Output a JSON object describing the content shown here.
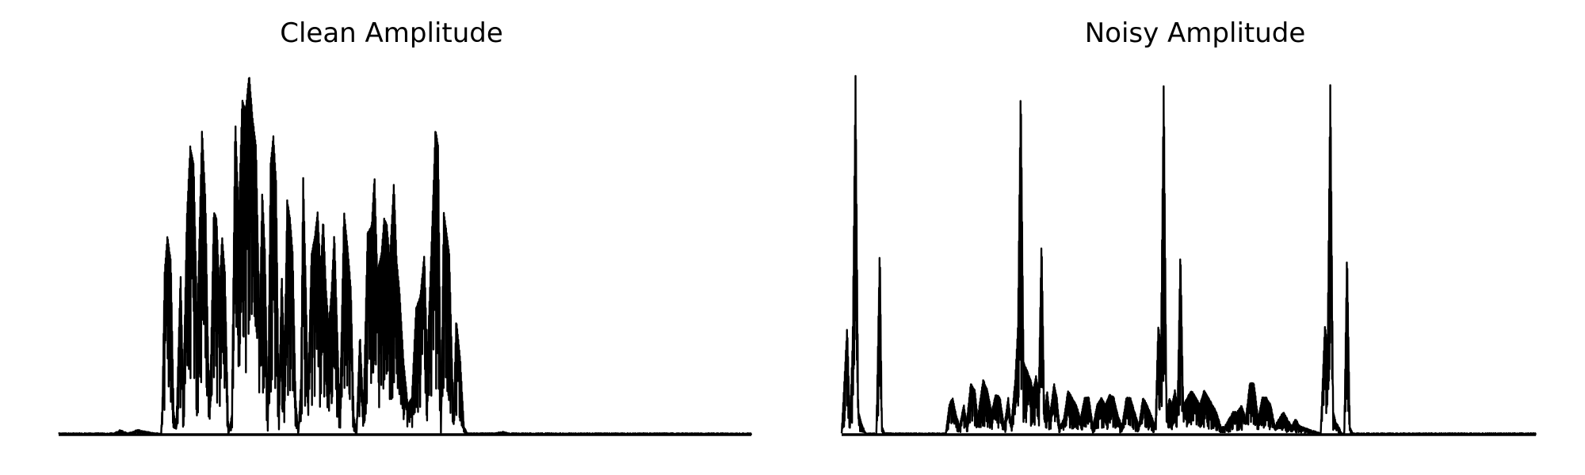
{
  "chart_data": [
    {
      "type": "line",
      "title": "Clean Amplitude",
      "xlabel": "",
      "ylabel": "",
      "axes_visible": false,
      "grid": false,
      "color": "#000000",
      "ylim": [
        0,
        1.0
      ],
      "x_range": [
        0,
        1
      ],
      "envelope": [
        [
          0.0,
          0.0
        ],
        [
          0.08,
          0.0
        ],
        [
          0.09,
          0.01
        ],
        [
          0.1,
          0.0
        ],
        [
          0.115,
          0.01
        ],
        [
          0.125,
          0.005
        ],
        [
          0.14,
          0.0
        ],
        [
          0.148,
          0.0
        ],
        [
          0.15,
          0.1
        ],
        [
          0.153,
          0.45
        ],
        [
          0.157,
          0.55
        ],
        [
          0.162,
          0.48
        ],
        [
          0.166,
          0.06
        ],
        [
          0.17,
          0.02
        ],
        [
          0.176,
          0.45
        ],
        [
          0.18,
          0.1
        ],
        [
          0.185,
          0.6
        ],
        [
          0.19,
          0.8
        ],
        [
          0.195,
          0.75
        ],
        [
          0.2,
          0.3
        ],
        [
          0.207,
          0.85
        ],
        [
          0.212,
          0.65
        ],
        [
          0.216,
          0.2
        ],
        [
          0.219,
          0.12
        ],
        [
          0.224,
          0.62
        ],
        [
          0.228,
          0.6
        ],
        [
          0.232,
          0.4
        ],
        [
          0.236,
          0.55
        ],
        [
          0.24,
          0.45
        ],
        [
          0.245,
          0.0
        ],
        [
          0.25,
          0.05
        ],
        [
          0.255,
          0.88
        ],
        [
          0.26,
          0.6
        ],
        [
          0.265,
          0.93
        ],
        [
          0.27,
          0.9
        ],
        [
          0.275,
          1.0
        ],
        [
          0.28,
          0.88
        ],
        [
          0.285,
          0.8
        ],
        [
          0.29,
          0.3
        ],
        [
          0.294,
          0.68
        ],
        [
          0.298,
          0.5
        ],
        [
          0.302,
          0.02
        ],
        [
          0.306,
          0.75
        ],
        [
          0.31,
          0.83
        ],
        [
          0.314,
          0.7
        ],
        [
          0.318,
          0.05
        ],
        [
          0.322,
          0.45
        ],
        [
          0.326,
          0.2
        ],
        [
          0.33,
          0.65
        ],
        [
          0.334,
          0.6
        ],
        [
          0.338,
          0.5
        ],
        [
          0.342,
          0.1
        ],
        [
          0.346,
          0.0
        ],
        [
          0.35,
          0.15
        ],
        [
          0.353,
          0.72
        ],
        [
          0.357,
          0.4
        ],
        [
          0.36,
          0.1
        ],
        [
          0.365,
          0.5
        ],
        [
          0.37,
          0.55
        ],
        [
          0.374,
          0.62
        ],
        [
          0.378,
          0.45
        ],
        [
          0.382,
          0.6
        ],
        [
          0.386,
          0.4
        ],
        [
          0.39,
          0.3
        ],
        [
          0.394,
          0.4
        ],
        [
          0.398,
          0.56
        ],
        [
          0.402,
          0.3
        ],
        [
          0.406,
          0.05
        ],
        [
          0.412,
          0.62
        ],
        [
          0.418,
          0.5
        ],
        [
          0.422,
          0.4
        ],
        [
          0.426,
          0.05
        ],
        [
          0.43,
          0.0
        ],
        [
          0.435,
          0.28
        ],
        [
          0.44,
          0.05
        ],
        [
          0.446,
          0.56
        ],
        [
          0.452,
          0.58
        ],
        [
          0.456,
          0.72
        ],
        [
          0.46,
          0.45
        ],
        [
          0.466,
          0.5
        ],
        [
          0.47,
          0.6
        ],
        [
          0.474,
          0.58
        ],
        [
          0.478,
          0.48
        ],
        [
          0.484,
          0.7
        ],
        [
          0.488,
          0.48
        ],
        [
          0.492,
          0.4
        ],
        [
          0.498,
          0.2
        ],
        [
          0.504,
          0.08
        ],
        [
          0.51,
          0.1
        ],
        [
          0.516,
          0.35
        ],
        [
          0.522,
          0.38
        ],
        [
          0.528,
          0.5
        ],
        [
          0.532,
          0.2
        ],
        [
          0.536,
          0.4
        ],
        [
          0.54,
          0.62
        ],
        [
          0.544,
          0.85
        ],
        [
          0.548,
          0.8
        ],
        [
          0.552,
          0.02
        ],
        [
          0.556,
          0.62
        ],
        [
          0.56,
          0.56
        ],
        [
          0.564,
          0.5
        ],
        [
          0.57,
          0.03
        ],
        [
          0.574,
          0.32
        ],
        [
          0.58,
          0.2
        ],
        [
          0.585,
          0.02
        ],
        [
          0.59,
          0.0
        ],
        [
          0.63,
          0.0
        ],
        [
          0.64,
          0.005
        ],
        [
          0.65,
          0.0
        ],
        [
          1.0,
          0.0
        ]
      ]
    },
    {
      "type": "line",
      "title": "Noisy Amplitude",
      "xlabel": "",
      "ylabel": "",
      "axes_visible": false,
      "grid": false,
      "color": "#000000",
      "ylim": [
        0,
        1.0
      ],
      "x_range": [
        0,
        1
      ],
      "envelope": [
        [
          0.0,
          0.0
        ],
        [
          0.008,
          0.3
        ],
        [
          0.012,
          0.02
        ],
        [
          0.016,
          0.27
        ],
        [
          0.02,
          1.0
        ],
        [
          0.024,
          0.06
        ],
        [
          0.03,
          0.02
        ],
        [
          0.035,
          0.0
        ],
        [
          0.05,
          0.0
        ],
        [
          0.055,
          0.53
        ],
        [
          0.058,
          0.02
        ],
        [
          0.062,
          0.0
        ],
        [
          0.15,
          0.0
        ],
        [
          0.155,
          0.08
        ],
        [
          0.16,
          0.1
        ],
        [
          0.165,
          0.05
        ],
        [
          0.17,
          0.02
        ],
        [
          0.176,
          0.08
        ],
        [
          0.18,
          0.03
        ],
        [
          0.186,
          0.14
        ],
        [
          0.192,
          0.12
        ],
        [
          0.196,
          0.04
        ],
        [
          0.2,
          0.1
        ],
        [
          0.204,
          0.15
        ],
        [
          0.21,
          0.12
        ],
        [
          0.216,
          0.06
        ],
        [
          0.222,
          0.11
        ],
        [
          0.228,
          0.1
        ],
        [
          0.234,
          0.02
        ],
        [
          0.24,
          0.1
        ],
        [
          0.244,
          0.02
        ],
        [
          0.25,
          0.15
        ],
        [
          0.254,
          0.3
        ],
        [
          0.258,
          0.98
        ],
        [
          0.262,
          0.2
        ],
        [
          0.268,
          0.17
        ],
        [
          0.272,
          0.15
        ],
        [
          0.276,
          0.12
        ],
        [
          0.28,
          0.16
        ],
        [
          0.284,
          0.12
        ],
        [
          0.288,
          0.55
        ],
        [
          0.292,
          0.05
        ],
        [
          0.296,
          0.12
        ],
        [
          0.3,
          0.05
        ],
        [
          0.306,
          0.14
        ],
        [
          0.31,
          0.1
        ],
        [
          0.314,
          0.02
        ],
        [
          0.32,
          0.04
        ],
        [
          0.326,
          0.12
        ],
        [
          0.332,
          0.1
        ],
        [
          0.338,
          0.08
        ],
        [
          0.344,
          0.04
        ],
        [
          0.35,
          0.1
        ],
        [
          0.356,
          0.1
        ],
        [
          0.362,
          0.02
        ],
        [
          0.368,
          0.08
        ],
        [
          0.374,
          0.1
        ],
        [
          0.38,
          0.08
        ],
        [
          0.386,
          0.11
        ],
        [
          0.392,
          0.1
        ],
        [
          0.398,
          0.05
        ],
        [
          0.404,
          0.02
        ],
        [
          0.41,
          0.1
        ],
        [
          0.416,
          0.1
        ],
        [
          0.422,
          0.06
        ],
        [
          0.428,
          0.02
        ],
        [
          0.434,
          0.1
        ],
        [
          0.44,
          0.08
        ],
        [
          0.446,
          0.05
        ],
        [
          0.452,
          0.02
        ],
        [
          0.456,
          0.3
        ],
        [
          0.46,
          0.25
        ],
        [
          0.464,
          1.0
        ],
        [
          0.468,
          0.05
        ],
        [
          0.472,
          0.1
        ],
        [
          0.476,
          0.08
        ],
        [
          0.48,
          0.12
        ],
        [
          0.484,
          0.08
        ],
        [
          0.488,
          0.52
        ],
        [
          0.492,
          0.08
        ],
        [
          0.498,
          0.1
        ],
        [
          0.504,
          0.12
        ],
        [
          0.51,
          0.1
        ],
        [
          0.516,
          0.08
        ],
        [
          0.522,
          0.12
        ],
        [
          0.528,
          0.1
        ],
        [
          0.534,
          0.08
        ],
        [
          0.54,
          0.06
        ],
        [
          0.546,
          0.02
        ],
        [
          0.552,
          0.02
        ],
        [
          0.558,
          0.04
        ],
        [
          0.564,
          0.06
        ],
        [
          0.57,
          0.06
        ],
        [
          0.576,
          0.08
        ],
        [
          0.582,
          0.04
        ],
        [
          0.588,
          0.14
        ],
        [
          0.594,
          0.14
        ],
        [
          0.6,
          0.04
        ],
        [
          0.606,
          0.1
        ],
        [
          0.612,
          0.1
        ],
        [
          0.618,
          0.08
        ],
        [
          0.624,
          0.02
        ],
        [
          0.63,
          0.04
        ],
        [
          0.636,
          0.06
        ],
        [
          0.642,
          0.04
        ],
        [
          0.648,
          0.02
        ],
        [
          0.654,
          0.04
        ],
        [
          0.66,
          0.02
        ],
        [
          0.69,
          0.0
        ],
        [
          0.696,
          0.3
        ],
        [
          0.7,
          0.25
        ],
        [
          0.704,
          1.0
        ],
        [
          0.708,
          0.06
        ],
        [
          0.712,
          0.03
        ],
        [
          0.716,
          0.02
        ],
        [
          0.72,
          0.0
        ],
        [
          0.724,
          0.0
        ],
        [
          0.728,
          0.52
        ],
        [
          0.732,
          0.02
        ],
        [
          0.736,
          0.0
        ],
        [
          1.0,
          0.0
        ]
      ]
    }
  ]
}
